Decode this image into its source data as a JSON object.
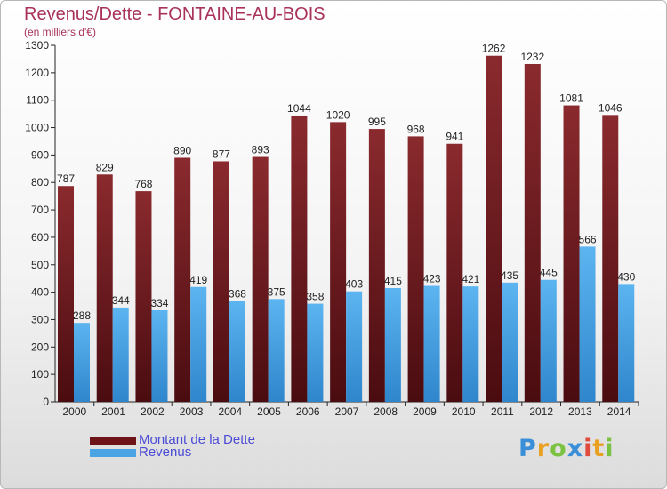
{
  "header": {
    "title": "Revenus/Dette - FONTAINE-AU-BOIS",
    "subtitle": "(en milliers d'€)"
  },
  "legend": {
    "items": [
      {
        "label": "Montant de la Dette",
        "color": "#7a1d22"
      },
      {
        "label": "Revenus",
        "color": "#4aa3e3"
      }
    ]
  },
  "logo": {
    "text": "Proxiti",
    "letters": [
      {
        "ch": "P",
        "color": "#3a8fd8"
      },
      {
        "ch": "r",
        "color": "#e8a020"
      },
      {
        "ch": "o",
        "color": "#7cc242"
      },
      {
        "ch": "x",
        "color": "#3a8fd8"
      },
      {
        "ch": "i",
        "color": "#e04b3c"
      },
      {
        "ch": "t",
        "color": "#e8a020"
      },
      {
        "ch": "i",
        "color": "#7cc242"
      }
    ]
  },
  "chart_data": {
    "type": "bar",
    "title": "Revenus/Dette - FONTAINE-AU-BOIS",
    "subtitle": "(en milliers d'€)",
    "xlabel": "",
    "ylabel": "",
    "ylim": [
      0,
      1300
    ],
    "ytick_step": 100,
    "grid": false,
    "legend_position": "bottom-left",
    "categories": [
      "2000",
      "2001",
      "2002",
      "2003",
      "2004",
      "2005",
      "2006",
      "2007",
      "2008",
      "2009",
      "2010",
      "2011",
      "2012",
      "2013",
      "2014"
    ],
    "series": [
      {
        "name": "Montant de la Dette",
        "color": "#7a1d22",
        "values": [
          787,
          829,
          768,
          890,
          877,
          893,
          1044,
          1020,
          995,
          968,
          941,
          1262,
          1232,
          1081,
          1046
        ]
      },
      {
        "name": "Revenus",
        "color": "#4aa3e3",
        "values": [
          288,
          344,
          334,
          419,
          368,
          375,
          358,
          403,
          415,
          423,
          421,
          435,
          445,
          566,
          430
        ]
      }
    ]
  }
}
